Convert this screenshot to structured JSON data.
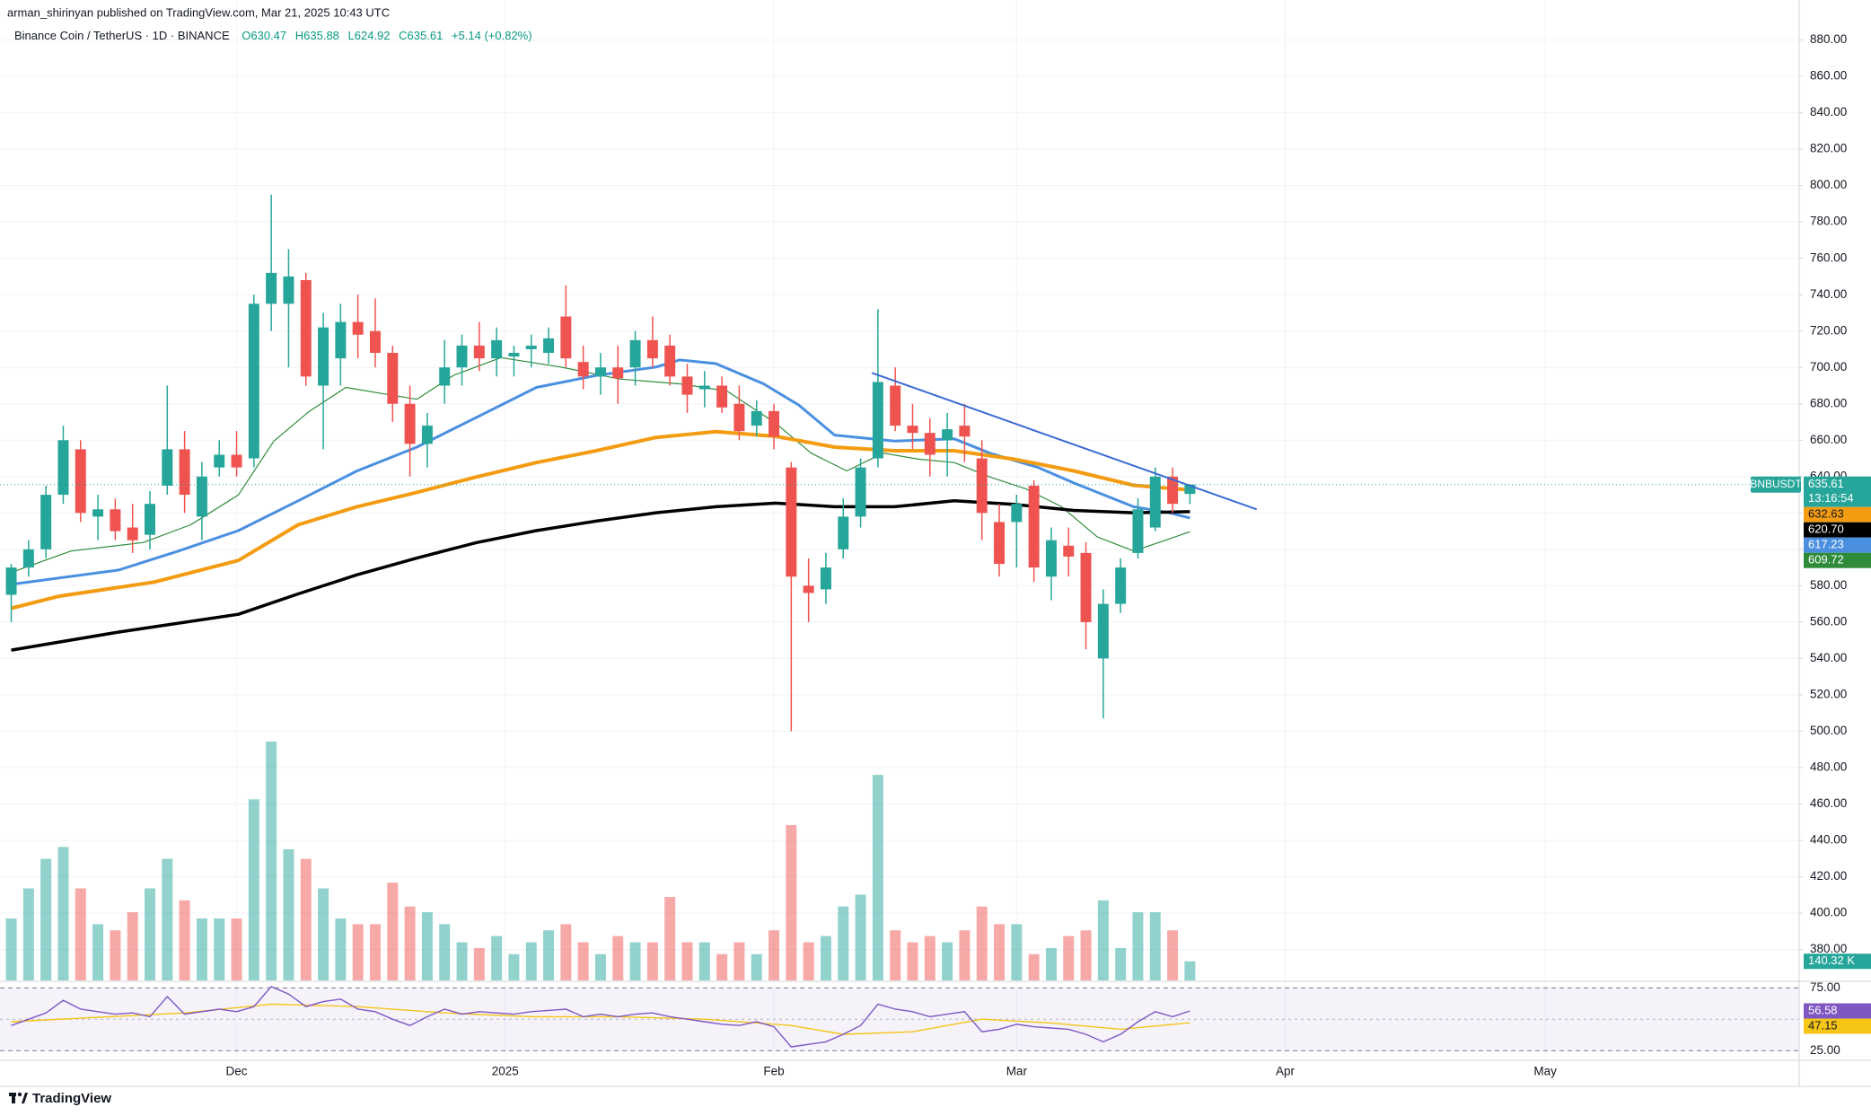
{
  "header": {
    "published": "arman_shirinyan published on TradingView.com, Mar 21, 2025 10:43 UTC",
    "brand": "TradingView"
  },
  "chart_data": {
    "type": "candlestick",
    "symbol": "Binance Coin / TetherUS · 1D · BINANCE",
    "ohlc_legend": [
      "O630.47",
      "H635.88",
      "L624.92",
      "C635.61",
      "+5.14 (+0.82%)"
    ],
    "x": [
      0,
      2,
      4,
      6,
      8,
      10,
      12,
      14,
      16,
      18,
      20,
      22,
      24,
      26,
      28,
      30,
      32,
      34,
      36,
      38,
      40,
      42,
      44,
      46,
      48,
      50,
      52,
      54,
      56,
      58,
      60,
      62,
      64,
      66,
      68,
      70,
      72,
      74,
      76,
      78,
      80,
      82,
      84,
      86,
      88,
      90,
      92,
      94,
      96,
      98,
      100,
      102,
      104,
      106,
      108,
      110,
      112,
      114,
      116,
      118,
      120,
      122,
      124,
      126,
      128,
      130,
      132,
      134,
      136
    ],
    "open": [
      575,
      590,
      600,
      630,
      655,
      618,
      622,
      612,
      608,
      635,
      655,
      618,
      645,
      652,
      650,
      735,
      735,
      748,
      690,
      705,
      725,
      720,
      708,
      680,
      658,
      690,
      700,
      712,
      705,
      706,
      710,
      708,
      728,
      703,
      695,
      700,
      700,
      715,
      712,
      695,
      688,
      690,
      680,
      668,
      676,
      645,
      580,
      578,
      600,
      618,
      650,
      690,
      668,
      664,
      660,
      668,
      650,
      615,
      615,
      635,
      585,
      602,
      598,
      540,
      570,
      598,
      612,
      640,
      630.47
    ],
    "high": [
      592,
      605,
      635,
      668,
      660,
      630,
      628,
      625,
      632,
      690,
      665,
      648,
      660,
      665,
      740,
      795,
      765,
      752,
      730,
      735,
      740,
      738,
      712,
      690,
      675,
      715,
      718,
      725,
      722,
      712,
      718,
      722,
      745,
      712,
      708,
      712,
      720,
      728,
      718,
      702,
      698,
      695,
      690,
      682,
      680,
      648,
      595,
      598,
      628,
      650,
      732,
      700,
      680,
      672,
      675,
      680,
      660,
      625,
      630,
      638,
      612,
      612,
      604,
      578,
      595,
      628,
      645,
      645,
      635.88
    ],
    "low": [
      560,
      585,
      595,
      625,
      615,
      605,
      605,
      598,
      600,
      630,
      620,
      605,
      640,
      640,
      645,
      720,
      700,
      690,
      655,
      690,
      705,
      700,
      670,
      640,
      645,
      680,
      690,
      698,
      695,
      695,
      700,
      702,
      700,
      688,
      685,
      680,
      690,
      700,
      690,
      675,
      678,
      675,
      660,
      662,
      655,
      500,
      560,
      570,
      595,
      612,
      645,
      665,
      655,
      640,
      640,
      648,
      605,
      585,
      590,
      582,
      572,
      585,
      545,
      507,
      565,
      595,
      610,
      620,
      624.92
    ],
    "close": [
      590,
      600,
      630,
      660,
      620,
      622,
      610,
      605,
      625,
      655,
      630,
      640,
      652,
      645,
      735,
      752,
      750,
      695,
      722,
      725,
      718,
      708,
      680,
      658,
      668,
      700,
      712,
      705,
      715,
      708,
      712,
      716,
      705,
      695,
      700,
      694,
      715,
      705,
      695,
      685,
      690,
      678,
      665,
      676,
      662,
      585,
      576,
      590,
      618,
      645,
      692,
      668,
      664,
      652,
      666,
      662,
      620,
      592,
      625,
      590,
      605,
      596,
      560,
      570,
      590,
      622,
      640,
      625,
      635.61
    ],
    "up_color": "#26a69a",
    "down_color": "#ef5350",
    "xlim": [
      -1.3,
      206.3
    ],
    "xticks": [
      {
        "value": 26,
        "label": "Dec"
      },
      {
        "value": 57,
        "label": "2025"
      },
      {
        "value": 88,
        "label": "Feb"
      },
      {
        "value": 116,
        "label": "Mar"
      },
      {
        "value": 147,
        "label": "Apr"
      },
      {
        "value": 177,
        "label": "May"
      }
    ],
    "ylim": [
      363,
      902
    ],
    "yticks": [
      {
        "value": 880,
        "label": "880.00"
      },
      {
        "value": 860,
        "label": "860.00"
      },
      {
        "value": 840,
        "label": "840.00"
      },
      {
        "value": 820,
        "label": "820.00"
      },
      {
        "value": 800,
        "label": "800.00"
      },
      {
        "value": 780,
        "label": "780.00"
      },
      {
        "value": 760,
        "label": "760.00"
      },
      {
        "value": 740,
        "label": "740.00"
      },
      {
        "value": 720,
        "label": "720.00"
      },
      {
        "value": 700,
        "label": "700.00"
      },
      {
        "value": 680,
        "label": "680.00"
      },
      {
        "value": 660,
        "label": "660.00"
      },
      {
        "value": 640,
        "label": "640.00"
      },
      {
        "value": 620,
        "label": "620.00"
      },
      {
        "value": 600,
        "label": "600.00"
      },
      {
        "value": 580,
        "label": "580.00"
      },
      {
        "value": 560,
        "label": "560.00"
      },
      {
        "value": 540,
        "label": "540.00"
      },
      {
        "value": 520,
        "label": "520.00"
      },
      {
        "value": 500,
        "label": "500.00"
      },
      {
        "value": 480,
        "label": "480.00"
      },
      {
        "value": 460,
        "label": "460.00"
      },
      {
        "value": 440,
        "label": "440.00"
      },
      {
        "value": 420,
        "label": "420.00"
      },
      {
        "value": 400,
        "label": "400.00"
      },
      {
        "value": 380,
        "label": "380.00"
      }
    ],
    "grid": true,
    "last_price": {
      "name": "BNBUSDT",
      "value": 635.61,
      "countdown": "13:16:54",
      "color": "#26a69a"
    },
    "lines": [
      {
        "color": "#f39c12",
        "x": [
          0,
          5.5,
          16.5,
          26.2,
          33.1,
          39.9,
          46.8,
          53.7,
          60.6,
          67.5,
          74.4,
          81.3,
          88.2,
          95,
          101.9,
          108.8,
          115.7,
          122.6,
          129.5,
          136
        ],
        "values": [
          567.6,
          574.2,
          582,
          593.9,
          613.5,
          623.4,
          631.3,
          639.8,
          647.7,
          654.2,
          661.5,
          664.7,
          662.1,
          656.2,
          654.2,
          654.2,
          649.6,
          643.1,
          635.2,
          632.63
        ],
        "last": {
          "value": 632.63,
          "label": "632.63"
        }
      },
      {
        "color": "#000000",
        "x": [
          0,
          12.4,
          26.2,
          33.1,
          39.9,
          46.8,
          53.7,
          60.6,
          67.5,
          74.4,
          81.3,
          88.2,
          95,
          101.9,
          108.8,
          115.7,
          122.6,
          129.5,
          136
        ],
        "values": [
          544.6,
          554.5,
          564.3,
          575.5,
          586,
          595.2,
          603.7,
          610.3,
          615.5,
          620.1,
          623.4,
          625.4,
          623.4,
          623.4,
          626.7,
          624.7,
          621.4,
          620.1,
          620.7
        ],
        "last": {
          "value": 620.7,
          "label": "620.70"
        }
      },
      {
        "color": "#4a8fe0",
        "x": [
          0,
          12.4,
          19.3,
          26.2,
          33.1,
          39.9,
          46.8,
          53.7,
          60.6,
          67.5,
          74.4,
          77.1,
          81.3,
          86.8,
          90.9,
          95,
          101.9,
          108.8,
          112.9,
          118.5,
          122.6,
          129.5,
          133.6,
          136
        ],
        "values": [
          580.7,
          588.6,
          599.1,
          610.3,
          626.7,
          643.1,
          656.2,
          672.6,
          689,
          695.6,
          700.2,
          704.1,
          702.1,
          691,
          679.2,
          662.8,
          659.5,
          660.8,
          652.9,
          645,
          636.5,
          623.4,
          620.1,
          617.23
        ],
        "last": {
          "value": 617.23,
          "label": "617.23"
        }
      },
      {
        "color": "#2e8b3a",
        "x": [
          0,
          6.9,
          15.2,
          20.7,
          26.2,
          30.3,
          34.4,
          38.6,
          42.7,
          46.8,
          51,
          56.5,
          63.4,
          70.2,
          77.1,
          82.6,
          88.2,
          92.3,
          96.4,
          100.6,
          104.7,
          108.8,
          112.9,
          117.1,
          121.2,
          125.3,
          129.5,
          133.6,
          136
        ],
        "values": [
          587.3,
          599.1,
          603.7,
          613.5,
          629.9,
          659.5,
          675.9,
          689,
          685.7,
          682.5,
          695.6,
          705.4,
          700.2,
          693.6,
          691,
          687,
          669.3,
          652.9,
          643.1,
          652.9,
          649.6,
          647.7,
          639.8,
          633.2,
          623.4,
          606.9,
          599.1,
          605.7,
          609.72
        ],
        "last": {
          "value": 609.72,
          "label": "609.72"
        }
      }
    ],
    "trendline": {
      "color": "#3a6bd4",
      "x": [
        99.3,
        143.7
      ],
      "values": [
        697,
        622
      ]
    },
    "volume": {
      "ylim": [
        0,
        7200
      ],
      "values": [
        455,
        676,
        893,
        980,
        676,
        413,
        368,
        501,
        676,
        893,
        588,
        455,
        455,
        455,
        1330,
        1754,
        963,
        893,
        676,
        455,
        413,
        413,
        718,
        543,
        501,
        413,
        280,
        238,
        326,
        193,
        280,
        368,
        413,
        280,
        193,
        326,
        280,
        280,
        613,
        280,
        280,
        193,
        280,
        193,
        368,
        1141,
        280,
        326,
        543,
        630,
        1509,
        368,
        280,
        326,
        280,
        368,
        543,
        413,
        413,
        193,
        238,
        326,
        368,
        588,
        238,
        501,
        501,
        368,
        140.32
      ],
      "last": {
        "value": 140.32,
        "label": "140.32 K"
      }
    },
    "rsi": {
      "ylim": [
        18,
        78
      ],
      "yticks": [
        {
          "value": 75,
          "label": "75.00"
        },
        {
          "value": 25,
          "label": "25.00"
        }
      ],
      "series": [
        {
          "color": "#7e57c2",
          "x": [
            0,
            2,
            4,
            6,
            8,
            10,
            12,
            14,
            16,
            18,
            20,
            22,
            24,
            26,
            28,
            30,
            32,
            34,
            36,
            38,
            40,
            42,
            44,
            46,
            48,
            50,
            52,
            54,
            56,
            58,
            60,
            62,
            64,
            66,
            68,
            70,
            72,
            74,
            76,
            78,
            80,
            82,
            84,
            86,
            88,
            90,
            92,
            94,
            96,
            98,
            100,
            102,
            104,
            106,
            108,
            110,
            112,
            114,
            116,
            118,
            120,
            122,
            124,
            126,
            128,
            130,
            132,
            134,
            136
          ],
          "values": [
            45,
            50,
            55,
            65,
            58,
            56,
            54,
            55,
            52,
            68,
            54,
            56,
            58,
            56,
            60,
            76,
            70,
            60,
            64,
            66,
            58,
            56,
            50,
            45,
            52,
            58,
            54,
            56,
            55,
            54,
            56,
            57,
            58,
            52,
            54,
            52,
            54,
            55,
            52,
            50,
            48,
            46,
            45,
            48,
            44,
            28,
            30,
            32,
            38,
            45,
            62,
            58,
            56,
            52,
            54,
            56,
            40,
            42,
            46,
            44,
            43,
            42,
            38,
            32,
            38,
            48,
            56,
            52,
            56.58
          ],
          "last": {
            "value": 56.58,
            "label": "56.58"
          }
        },
        {
          "color": "#f5c518",
          "x": [
            0,
            20,
            30,
            40,
            50,
            60,
            70,
            80,
            90,
            96,
            104,
            112,
            120,
            128,
            136
          ],
          "values": [
            48,
            55,
            62,
            60,
            55,
            52,
            52,
            50,
            45,
            38,
            40,
            50,
            47,
            42,
            47.15
          ],
          "last": {
            "value": 47.15,
            "label": "47.15"
          }
        }
      ]
    }
  }
}
